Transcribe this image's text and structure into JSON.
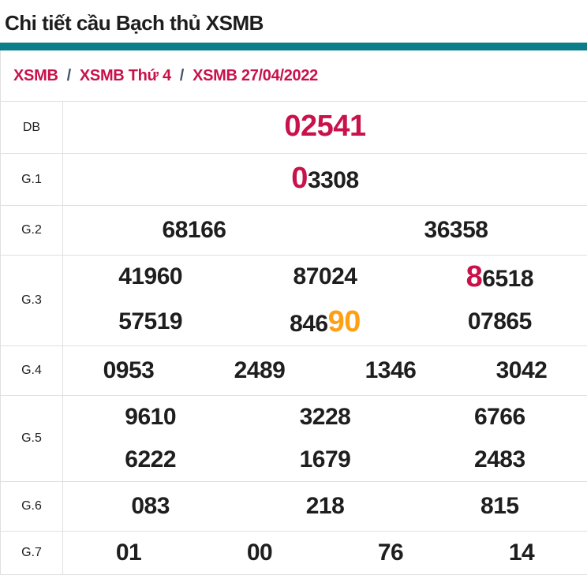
{
  "page": {
    "title": "Chi tiết cầu Bạch thủ XSMB"
  },
  "breadcrumb": {
    "separator": "/",
    "items": [
      "XSMB",
      "XSMB Thứ 4",
      "XSMB 27/04/2022"
    ]
  },
  "colors": {
    "accent_teal": "#0B7E8A",
    "highlight_crimson": "#C9114A",
    "highlight_orange": "#FFA014",
    "text_dark": "#1E1E1E",
    "border_gray": "#E0E0E0",
    "separator_slate": "#44546A"
  },
  "results_table": {
    "rows": [
      {
        "label": "DB",
        "lines": [
          [
            [
              {
                "t": "02541",
                "s": "hl-red"
              }
            ]
          ]
        ]
      },
      {
        "label": "G.1",
        "lines": [
          [
            [
              {
                "t": "0",
                "s": "hl-red"
              },
              {
                "t": "3308",
                "s": "n"
              }
            ]
          ]
        ]
      },
      {
        "label": "G.2",
        "lines": [
          [
            [
              {
                "t": "68166",
                "s": "n"
              }
            ],
            [
              {
                "t": "36358",
                "s": "n"
              }
            ]
          ]
        ]
      },
      {
        "label": "G.3",
        "lines": [
          [
            [
              {
                "t": "41960",
                "s": "n"
              }
            ],
            [
              {
                "t": "87024",
                "s": "n"
              }
            ],
            [
              {
                "t": "8",
                "s": "hl-red"
              },
              {
                "t": "6518",
                "s": "n"
              }
            ]
          ],
          [
            [
              {
                "t": "57519",
                "s": "n"
              }
            ],
            [
              {
                "t": "846",
                "s": "n"
              },
              {
                "t": "90",
                "s": "hl-orange"
              }
            ],
            [
              {
                "t": "07865",
                "s": "n"
              }
            ]
          ]
        ]
      },
      {
        "label": "G.4",
        "lines": [
          [
            [
              {
                "t": "0953",
                "s": "n"
              }
            ],
            [
              {
                "t": "2489",
                "s": "n"
              }
            ],
            [
              {
                "t": "1346",
                "s": "n"
              }
            ],
            [
              {
                "t": "3042",
                "s": "n"
              }
            ]
          ]
        ]
      },
      {
        "label": "G.5",
        "lines": [
          [
            [
              {
                "t": "9610",
                "s": "n"
              }
            ],
            [
              {
                "t": "3228",
                "s": "n"
              }
            ],
            [
              {
                "t": "6766",
                "s": "n"
              }
            ]
          ],
          [
            [
              {
                "t": "6222",
                "s": "n"
              }
            ],
            [
              {
                "t": "1679",
                "s": "n"
              }
            ],
            [
              {
                "t": "2483",
                "s": "n"
              }
            ]
          ]
        ]
      },
      {
        "label": "G.6",
        "lines": [
          [
            [
              {
                "t": "083",
                "s": "n"
              }
            ],
            [
              {
                "t": "218",
                "s": "n"
              }
            ],
            [
              {
                "t": "815",
                "s": "n"
              }
            ]
          ]
        ]
      },
      {
        "label": "G.7",
        "lines": [
          [
            [
              {
                "t": "01",
                "s": "n"
              }
            ],
            [
              {
                "t": "00",
                "s": "n"
              }
            ],
            [
              {
                "t": "76",
                "s": "n"
              }
            ],
            [
              {
                "t": "14",
                "s": "n"
              }
            ]
          ]
        ]
      }
    ]
  }
}
